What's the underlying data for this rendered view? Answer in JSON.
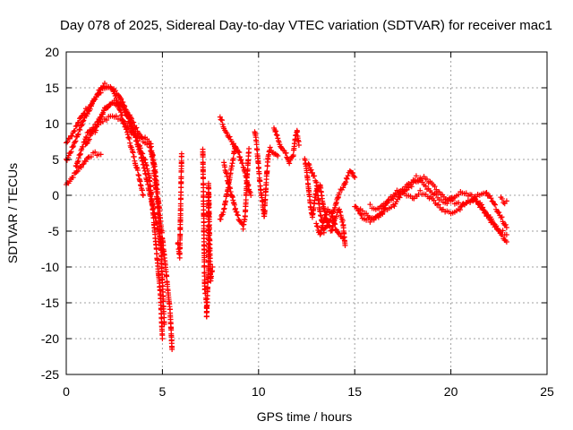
{
  "chart_data": {
    "type": "scatter",
    "title": "Day 078 of 2025, Sidereal Day-to-day VTEC variation (SDTVAR) for receiver mac1",
    "xlabel": "GPS time / hours",
    "ylabel": "SDTVAR / TECUs",
    "xlim": [
      0,
      25
    ],
    "ylim": [
      -25,
      20
    ],
    "xticks": [
      "0",
      "5",
      "10",
      "15",
      "20",
      "25"
    ],
    "yticks": [
      "-25",
      "-20",
      "-15",
      "-10",
      "-5",
      "0",
      "5",
      "10",
      "15",
      "20"
    ],
    "grid": true,
    "marker": "+",
    "color": "#ff0000",
    "series": [
      {
        "name": "SDTVAR",
        "traces": [
          [
            [
              0.0,
              1.5
            ],
            [
              0.3,
              2.5
            ],
            [
              0.6,
              3.5
            ],
            [
              0.9,
              4.5
            ],
            [
              1.2,
              5.5
            ],
            [
              1.5,
              5.8
            ],
            [
              1.8,
              5.7
            ]
          ],
          [
            [
              0.0,
              4.8
            ],
            [
              0.3,
              6.5
            ],
            [
              0.6,
              8.5
            ],
            [
              0.9,
              10.5
            ],
            [
              1.2,
              12.0
            ],
            [
              1.5,
              13.5
            ],
            [
              1.8,
              15.0
            ],
            [
              2.0,
              15.5
            ],
            [
              2.3,
              15.0
            ],
            [
              2.6,
              13.5
            ],
            [
              2.9,
              11.0
            ],
            [
              3.2,
              8.5
            ],
            [
              3.5,
              5.5
            ],
            [
              3.8,
              2.5
            ],
            [
              4.0,
              0.0
            ]
          ],
          [
            [
              0.0,
              7.5
            ],
            [
              0.3,
              8.5
            ],
            [
              0.6,
              10.0
            ],
            [
              0.9,
              11.5
            ],
            [
              1.2,
              12.5
            ],
            [
              1.5,
              13.5
            ],
            [
              1.8,
              14.5
            ],
            [
              2.1,
              15.0
            ],
            [
              2.4,
              14.8
            ],
            [
              2.7,
              14.0
            ],
            [
              3.0,
              12.5
            ],
            [
              3.3,
              10.5
            ],
            [
              3.6,
              8.0
            ],
            [
              3.9,
              5.5
            ],
            [
              4.2,
              2.0
            ],
            [
              4.5,
              -1.5
            ],
            [
              4.8,
              -5.0
            ],
            [
              5.0,
              -8.0
            ]
          ],
          [
            [
              1.0,
              7.0
            ],
            [
              1.3,
              8.5
            ],
            [
              1.6,
              10.0
            ],
            [
              1.9,
              11.5
            ],
            [
              2.2,
              12.5
            ],
            [
              2.5,
              13.0
            ],
            [
              2.8,
              12.8
            ],
            [
              3.1,
              12.0
            ],
            [
              3.4,
              10.5
            ],
            [
              3.7,
              9.0
            ],
            [
              4.0,
              8.0
            ],
            [
              4.3,
              7.5
            ],
            [
              4.5,
              5.0
            ],
            [
              4.7,
              0.0
            ],
            [
              4.9,
              -6.0
            ],
            [
              5.0,
              -12.0
            ],
            [
              5.1,
              -18.0
            ]
          ],
          [
            [
              0.5,
              4.0
            ],
            [
              0.8,
              6.5
            ],
            [
              1.1,
              8.5
            ],
            [
              1.4,
              9.5
            ],
            [
              1.7,
              10.0
            ],
            [
              2.0,
              10.5
            ],
            [
              2.3,
              11.0
            ],
            [
              2.6,
              11.0
            ],
            [
              2.9,
              10.5
            ],
            [
              3.2,
              9.5
            ],
            [
              3.5,
              8.5
            ],
            [
              3.8,
              8.0
            ],
            [
              4.1,
              7.5
            ],
            [
              4.4,
              7.0
            ],
            [
              4.6,
              4.0
            ],
            [
              4.8,
              -1.0
            ],
            [
              5.0,
              -6.0
            ],
            [
              5.2,
              -11.0
            ],
            [
              5.4,
              -16.0
            ],
            [
              5.5,
              -21.5
            ]
          ],
          [
            [
              1.5,
              9.0
            ],
            [
              2.0,
              12.0
            ],
            [
              2.5,
              13.0
            ],
            [
              3.0,
              12.0
            ],
            [
              3.5,
              9.0
            ],
            [
              4.0,
              5.5
            ],
            [
              4.3,
              3.0
            ],
            [
              4.5,
              -2.0
            ],
            [
              4.7,
              -8.0
            ],
            [
              4.9,
              -14.0
            ],
            [
              5.0,
              -20.0
            ]
          ],
          [
            [
              5.8,
              -6.5
            ],
            [
              5.9,
              -8.5
            ],
            [
              6.0,
              5.8
            ]
          ],
          [
            [
              7.1,
              6.5
            ],
            [
              7.2,
              -13.0
            ],
            [
              7.3,
              -15.0
            ],
            [
              7.3,
              -17.0
            ],
            [
              7.4,
              -9.0
            ],
            [
              7.4,
              1.5
            ],
            [
              7.5,
              -12.0
            ],
            [
              7.6,
              -10.0
            ]
          ],
          [
            [
              8.0,
              11.0
            ],
            [
              8.2,
              9.5
            ],
            [
              8.4,
              8.5
            ],
            [
              8.6,
              7.5
            ],
            [
              8.8,
              6.5
            ],
            [
              9.0,
              5.5
            ],
            [
              9.2,
              4.0
            ],
            [
              9.4,
              2.0
            ],
            [
              9.6,
              0.0
            ]
          ],
          [
            [
              8.2,
              4.5
            ],
            [
              8.4,
              2.0
            ],
            [
              8.6,
              0.0
            ],
            [
              8.8,
              -2.0
            ],
            [
              9.0,
              -3.5
            ],
            [
              9.2,
              -4.5
            ],
            [
              9.3,
              -3.0
            ],
            [
              9.4,
              2.5
            ],
            [
              9.5,
              6.5
            ]
          ],
          [
            [
              8.0,
              -3.5
            ],
            [
              8.2,
              -2.0
            ],
            [
              8.4,
              1.0
            ],
            [
              8.6,
              4.0
            ],
            [
              8.8,
              7.0
            ],
            [
              9.0,
              6.0
            ]
          ],
          [
            [
              9.8,
              9.0
            ],
            [
              9.9,
              7.0
            ],
            [
              10.0,
              4.0
            ],
            [
              10.1,
              1.0
            ],
            [
              10.2,
              -1.0
            ],
            [
              10.3,
              -3.0
            ],
            [
              10.4,
              2.0
            ],
            [
              10.5,
              5.5
            ],
            [
              10.6,
              6.5
            ],
            [
              10.8,
              6.0
            ],
            [
              11.0,
              5.5
            ]
          ],
          [
            [
              10.8,
              9.5
            ],
            [
              11.2,
              6.5
            ],
            [
              11.4,
              6.0
            ],
            [
              11.6,
              4.5
            ],
            [
              11.8,
              5.5
            ],
            [
              11.9,
              8.0
            ],
            [
              12.0,
              9.0
            ],
            [
              12.1,
              7.0
            ]
          ],
          [
            [
              12.4,
              5.0
            ],
            [
              12.5,
              3.5
            ],
            [
              12.6,
              1.0
            ],
            [
              12.7,
              -1.5
            ],
            [
              12.8,
              -3.0
            ],
            [
              12.9,
              -1.0
            ],
            [
              13.0,
              0.5
            ],
            [
              13.2,
              1.5
            ],
            [
              13.4,
              -2.0
            ],
            [
              13.6,
              -4.0
            ],
            [
              13.8,
              -5.0
            ],
            [
              14.0,
              -3.0
            ],
            [
              14.2,
              -2.0
            ],
            [
              14.4,
              -4.0
            ],
            [
              14.5,
              -7.0
            ]
          ],
          [
            [
              12.6,
              4.5
            ],
            [
              12.8,
              3.0
            ],
            [
              13.0,
              2.0
            ],
            [
              13.2,
              -2.5
            ],
            [
              13.4,
              -5.0
            ],
            [
              13.6,
              -4.0
            ],
            [
              13.8,
              -3.0
            ],
            [
              14.0,
              -1.5
            ],
            [
              14.2,
              0.5
            ],
            [
              14.4,
              1.0
            ],
            [
              14.6,
              2.5
            ],
            [
              14.8,
              3.5
            ],
            [
              15.0,
              2.5
            ]
          ],
          [
            [
              13.0,
              -4.0
            ],
            [
              13.2,
              -5.5
            ],
            [
              13.4,
              -3.5
            ],
            [
              13.6,
              -2.0
            ],
            [
              13.8,
              -2.5
            ],
            [
              14.0,
              -4.5
            ],
            [
              14.2,
              -5.5
            ],
            [
              14.4,
              -6.0
            ]
          ],
          [
            [
              15.0,
              -1.5
            ],
            [
              15.4,
              -3.0
            ],
            [
              15.8,
              -3.5
            ],
            [
              16.2,
              -3.0
            ],
            [
              16.6,
              -2.0
            ],
            [
              17.0,
              -1.5
            ],
            [
              17.4,
              0.0
            ],
            [
              17.8,
              1.0
            ],
            [
              18.2,
              2.0
            ],
            [
              18.6,
              2.5
            ],
            [
              19.0,
              1.5
            ],
            [
              19.4,
              0.5
            ],
            [
              19.8,
              -0.5
            ],
            [
              20.2,
              -1.0
            ],
            [
              20.6,
              -1.5
            ],
            [
              21.0,
              -1.0
            ],
            [
              21.4,
              0.0
            ],
            [
              21.8,
              0.5
            ],
            [
              22.2,
              -1.0
            ],
            [
              22.6,
              -3.0
            ],
            [
              22.9,
              -4.5
            ]
          ],
          [
            [
              15.2,
              -2.0
            ],
            [
              15.6,
              -2.5
            ],
            [
              16.0,
              -3.5
            ],
            [
              16.4,
              -2.5
            ],
            [
              16.8,
              -0.5
            ],
            [
              17.2,
              0.5
            ],
            [
              17.6,
              0.0
            ],
            [
              18.0,
              -0.5
            ],
            [
              18.4,
              0.5
            ],
            [
              18.8,
              0.0
            ],
            [
              19.2,
              -1.0
            ],
            [
              19.6,
              -2.0
            ],
            [
              20.0,
              -2.5
            ],
            [
              20.4,
              -2.0
            ],
            [
              20.8,
              -1.0
            ],
            [
              21.2,
              -0.5
            ],
            [
              21.6,
              -1.5
            ],
            [
              22.0,
              -3.0
            ],
            [
              22.4,
              -4.5
            ],
            [
              22.9,
              -6.5
            ]
          ],
          [
            [
              15.8,
              -1.5
            ],
            [
              16.2,
              -2.0
            ],
            [
              16.6,
              -1.0
            ],
            [
              17.0,
              -0.5
            ],
            [
              17.4,
              0.5
            ],
            [
              17.8,
              1.5
            ],
            [
              18.2,
              2.5
            ],
            [
              18.6,
              1.5
            ],
            [
              19.0,
              0.5
            ],
            [
              19.4,
              -0.5
            ],
            [
              19.8,
              -1.0
            ],
            [
              20.2,
              0.0
            ],
            [
              20.6,
              0.5
            ],
            [
              21.0,
              0.0
            ],
            [
              21.4,
              -1.0
            ],
            [
              21.8,
              -2.5
            ],
            [
              22.2,
              -4.0
            ],
            [
              22.6,
              -5.0
            ],
            [
              22.9,
              -5.5
            ]
          ],
          [
            [
              22.6,
              -0.5
            ],
            [
              22.8,
              -1.0
            ],
            [
              22.9,
              -0.8
            ]
          ]
        ]
      }
    ]
  }
}
